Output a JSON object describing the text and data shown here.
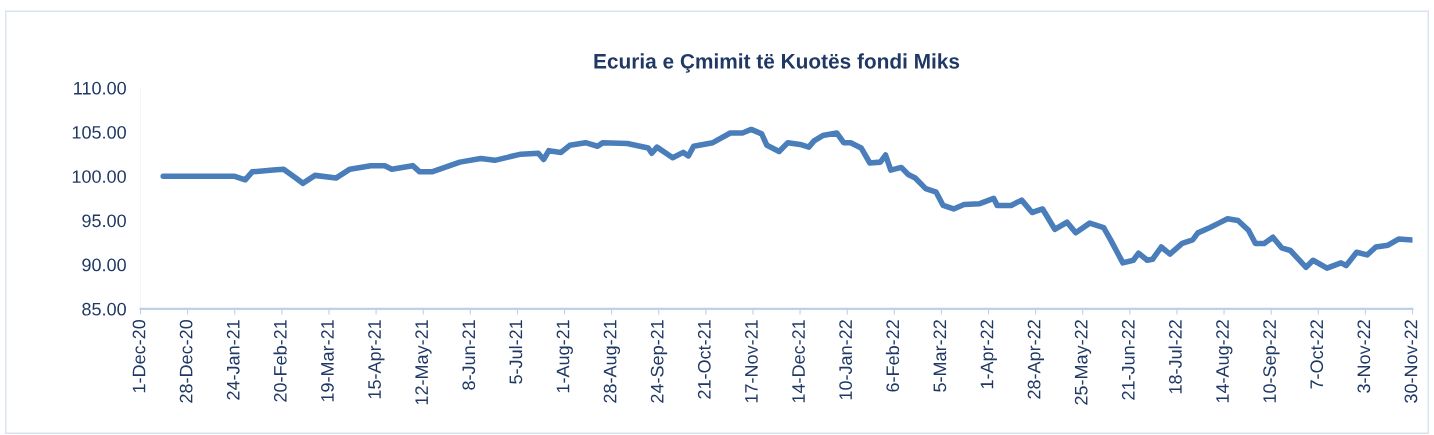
{
  "chart_data": {
    "type": "line",
    "title": "Ecuria e Çmimit të Kuotës fondi Miks",
    "x": [
      "2020-12-14",
      "2021-01-24",
      "2021-01-30",
      "2021-02-03",
      "2021-02-15",
      "2021-02-21",
      "2021-02-28",
      "2021-03-04",
      "2021-03-11",
      "2021-03-23",
      "2021-03-31",
      "2021-04-12",
      "2021-04-20",
      "2021-04-24",
      "2021-05-06",
      "2021-05-10",
      "2021-05-17",
      "2021-06-02",
      "2021-06-14",
      "2021-06-22",
      "2021-07-07",
      "2021-07-17",
      "2021-07-20",
      "2021-07-23",
      "2021-07-30",
      "2021-08-04",
      "2021-08-13",
      "2021-08-20",
      "2021-08-23",
      "2021-09-06",
      "2021-09-18",
      "2021-09-20",
      "2021-09-23",
      "2021-10-02",
      "2021-10-08",
      "2021-10-11",
      "2021-10-14",
      "2021-10-25",
      "2021-11-04",
      "2021-11-11",
      "2021-11-16",
      "2021-11-22",
      "2021-11-25",
      "2021-12-02",
      "2021-12-07",
      "2021-12-14",
      "2021-12-19",
      "2021-12-22",
      "2021-12-27",
      "2022-01-04",
      "2022-01-08",
      "2022-01-12",
      "2022-01-18",
      "2022-01-23",
      "2022-01-29",
      "2022-02-01",
      "2022-02-04",
      "2022-02-10",
      "2022-02-14",
      "2022-02-18",
      "2022-02-24",
      "2022-03-02",
      "2022-03-06",
      "2022-03-12",
      "2022-03-18",
      "2022-03-27",
      "2022-04-04",
      "2022-04-06",
      "2022-04-14",
      "2022-04-20",
      "2022-04-26",
      "2022-05-02",
      "2022-05-09",
      "2022-05-16",
      "2022-05-21",
      "2022-05-29",
      "2022-06-06",
      "2022-06-10",
      "2022-06-17",
      "2022-06-23",
      "2022-06-26",
      "2022-07-01",
      "2022-07-04",
      "2022-07-09",
      "2022-07-14",
      "2022-07-21",
      "2022-07-27",
      "2022-07-30",
      "2022-08-06",
      "2022-08-11",
      "2022-08-16",
      "2022-08-22",
      "2022-08-28",
      "2022-09-01",
      "2022-09-06",
      "2022-09-11",
      "2022-09-16",
      "2022-09-21",
      "2022-09-30",
      "2022-10-04",
      "2022-10-12",
      "2022-10-20",
      "2022-10-23",
      "2022-10-29",
      "2022-11-04",
      "2022-11-09",
      "2022-11-16",
      "2022-11-22",
      "2022-11-30"
    ],
    "series": [
      {
        "color": "#4a7ebb",
        "values": [
          100.0,
          100.0,
          99.6,
          100.5,
          100.7,
          100.8,
          99.8,
          99.2,
          100.1,
          99.8,
          100.8,
          101.2,
          101.2,
          100.8,
          101.2,
          100.5,
          100.5,
          101.6,
          102.0,
          101.8,
          102.5,
          102.6,
          101.9,
          102.9,
          102.7,
          103.5,
          103.8,
          103.4,
          103.8,
          103.7,
          103.2,
          102.6,
          103.3,
          102.1,
          102.7,
          102.3,
          103.4,
          103.8,
          104.9,
          104.9,
          105.3,
          104.8,
          103.5,
          102.8,
          103.8,
          103.6,
          103.3,
          104.0,
          104.6,
          104.9,
          103.8,
          103.8,
          103.2,
          101.5,
          101.6,
          102.4,
          100.7,
          101.0,
          100.2,
          99.8,
          98.6,
          98.2,
          96.7,
          96.3,
          96.8,
          96.9,
          97.5,
          96.7,
          96.7,
          97.3,
          95.9,
          96.3,
          94.0,
          94.8,
          93.6,
          94.7,
          94.2,
          92.8,
          90.2,
          90.5,
          91.3,
          90.5,
          90.6,
          92.0,
          91.2,
          92.4,
          92.8,
          93.6,
          94.2,
          94.7,
          95.2,
          95.0,
          93.9,
          92.4,
          92.4,
          93.1,
          91.9,
          91.6,
          89.7,
          90.5,
          89.6,
          90.2,
          89.9,
          91.4,
          91.1,
          92.0,
          92.2,
          92.9,
          92.8
        ]
      }
    ],
    "xlim": [
      "2020-12-01",
      "2022-11-30"
    ],
    "xticks": [
      {
        "value": "2020-12-01",
        "label": "1-Dec-20"
      },
      {
        "value": "2020-12-28",
        "label": "28-Dec-20"
      },
      {
        "value": "2021-01-24",
        "label": "24-Jan-21"
      },
      {
        "value": "2021-02-20",
        "label": "20-Feb-21"
      },
      {
        "value": "2021-03-19",
        "label": "19-Mar-21"
      },
      {
        "value": "2021-04-15",
        "label": "15-Apr-21"
      },
      {
        "value": "2021-05-12",
        "label": "12-May-21"
      },
      {
        "value": "2021-06-08",
        "label": "8-Jun-21"
      },
      {
        "value": "2021-07-05",
        "label": "5-Jul-21"
      },
      {
        "value": "2021-08-01",
        "label": "1-Aug-21"
      },
      {
        "value": "2021-08-28",
        "label": "28-Aug-21"
      },
      {
        "value": "2021-09-24",
        "label": "24-Sep-21"
      },
      {
        "value": "2021-10-21",
        "label": "21-Oct-21"
      },
      {
        "value": "2021-11-17",
        "label": "17-Nov-21"
      },
      {
        "value": "2021-12-14",
        "label": "14-Dec-21"
      },
      {
        "value": "2022-01-10",
        "label": "10-Jan-22"
      },
      {
        "value": "2022-02-06",
        "label": "6-Feb-22"
      },
      {
        "value": "2022-03-05",
        "label": "5-Mar-22"
      },
      {
        "value": "2022-04-01",
        "label": "1-Apr-22"
      },
      {
        "value": "2022-04-28",
        "label": "28-Apr-22"
      },
      {
        "value": "2022-05-25",
        "label": "25-May-22"
      },
      {
        "value": "2022-06-21",
        "label": "21-Jun-22"
      },
      {
        "value": "2022-07-18",
        "label": "18-Jul-22"
      },
      {
        "value": "2022-08-14",
        "label": "14-Aug-22"
      },
      {
        "value": "2022-09-10",
        "label": "10-Sep-22"
      },
      {
        "value": "2022-10-07",
        "label": "7-Oct-22"
      },
      {
        "value": "2022-11-03",
        "label": "3-Nov-22"
      },
      {
        "value": "2022-11-30",
        "label": "30-Nov-22"
      }
    ],
    "ylim": [
      85,
      110
    ],
    "yticks": [
      {
        "value": 85,
        "label": "85.00"
      },
      {
        "value": 90,
        "label": "90.00"
      },
      {
        "value": 95,
        "label": "95.00"
      },
      {
        "value": 100,
        "label": "100.00"
      },
      {
        "value": 105,
        "label": "105.00"
      },
      {
        "value": 110,
        "label": "110.00"
      }
    ],
    "grid": false,
    "marker": "none",
    "line_style": "solid"
  }
}
